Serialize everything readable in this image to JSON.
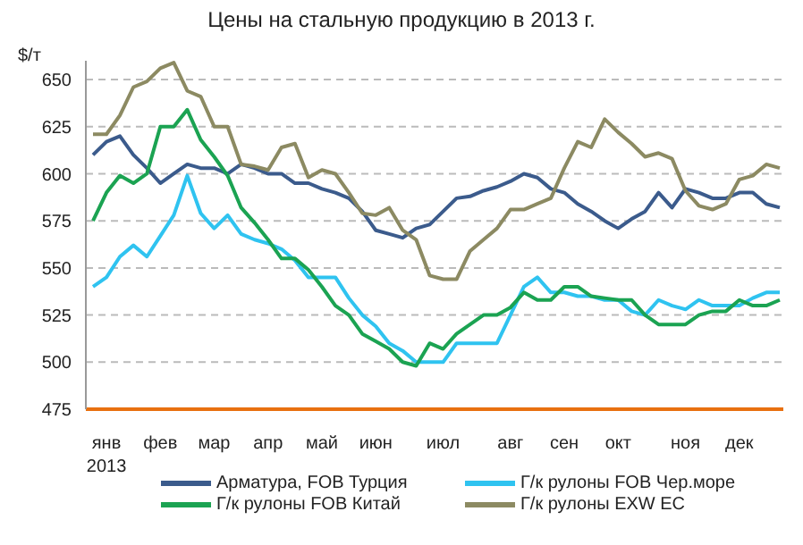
{
  "chart_data": {
    "type": "line",
    "title": "Цены на стальную продукцию в 2013 г.",
    "ylabel": "$/т",
    "categories": [
      null,
      "янв 2013",
      null,
      null,
      null,
      "фев",
      null,
      null,
      null,
      "мар",
      null,
      null,
      null,
      "апр",
      null,
      null,
      null,
      "май",
      null,
      null,
      null,
      "июн",
      null,
      null,
      null,
      null,
      "июл",
      null,
      null,
      null,
      null,
      "авг",
      null,
      null,
      null,
      "сен",
      null,
      null,
      null,
      "окт",
      null,
      null,
      null,
      null,
      "ноя",
      null,
      null,
      null,
      "дек",
      null,
      null,
      null
    ],
    "ylim": [
      475,
      660
    ],
    "yticks": [
      475,
      500,
      525,
      550,
      575,
      600,
      625,
      650
    ],
    "grid": "y",
    "legend": "bottom",
    "line_style": "solid",
    "marker": "none",
    "series": [
      {
        "name": "Арматура, FOB Турция",
        "color": "#3b5b8c",
        "values": [
          610,
          617,
          620,
          610,
          603,
          595,
          600,
          605,
          603,
          603,
          600,
          605,
          603,
          600,
          600,
          595,
          595,
          592,
          590,
          587,
          580,
          570,
          568,
          566,
          571,
          573,
          580,
          587,
          588,
          591,
          593,
          596,
          600,
          598,
          592,
          590,
          584,
          580,
          575,
          571,
          576,
          580,
          590,
          582,
          592,
          590,
          587,
          587,
          590,
          590,
          584,
          582
        ]
      },
      {
        "name": "Г/к рулоны FOB Чер.море",
        "color": "#2fc3f0",
        "values": [
          540,
          545,
          556,
          562,
          556,
          567,
          578,
          599,
          579,
          571,
          578,
          568,
          565,
          563,
          560,
          554,
          545,
          545,
          545,
          534,
          525,
          519,
          510,
          506,
          500,
          500,
          500,
          510,
          510,
          510,
          510,
          525,
          540,
          545,
          537,
          537,
          535,
          535,
          533,
          533,
          527,
          525,
          533,
          530,
          528,
          533,
          530,
          530,
          530,
          534,
          537,
          537
        ]
      },
      {
        "name": "Г/к рулоны FOB Китай",
        "color": "#1ba352",
        "values": [
          575,
          590,
          599,
          595,
          600,
          625,
          625,
          634,
          618,
          609,
          599,
          582,
          574,
          565,
          555,
          555,
          549,
          540,
          530,
          525,
          515,
          511,
          507,
          500,
          498,
          510,
          507,
          515,
          520,
          525,
          525,
          529,
          537,
          533,
          533,
          540,
          540,
          535,
          534,
          533,
          533,
          525,
          520,
          520,
          520,
          525,
          527,
          527,
          533,
          530,
          530,
          533
        ]
      },
      {
        "name": "Г/к рулоны EXW ЕС",
        "color": "#8c8a62",
        "values": [
          621,
          621,
          631,
          646,
          649,
          656,
          659,
          644,
          641,
          625,
          625,
          605,
          604,
          602,
          614,
          616,
          598,
          602,
          600,
          590,
          579,
          578,
          582,
          570,
          565,
          546,
          544,
          544,
          559,
          565,
          571,
          581,
          581,
          584,
          587,
          603,
          617,
          614,
          629,
          622,
          616,
          609,
          611,
          608,
          591,
          583,
          581,
          584,
          597,
          599,
          605,
          603
        ]
      }
    ]
  }
}
